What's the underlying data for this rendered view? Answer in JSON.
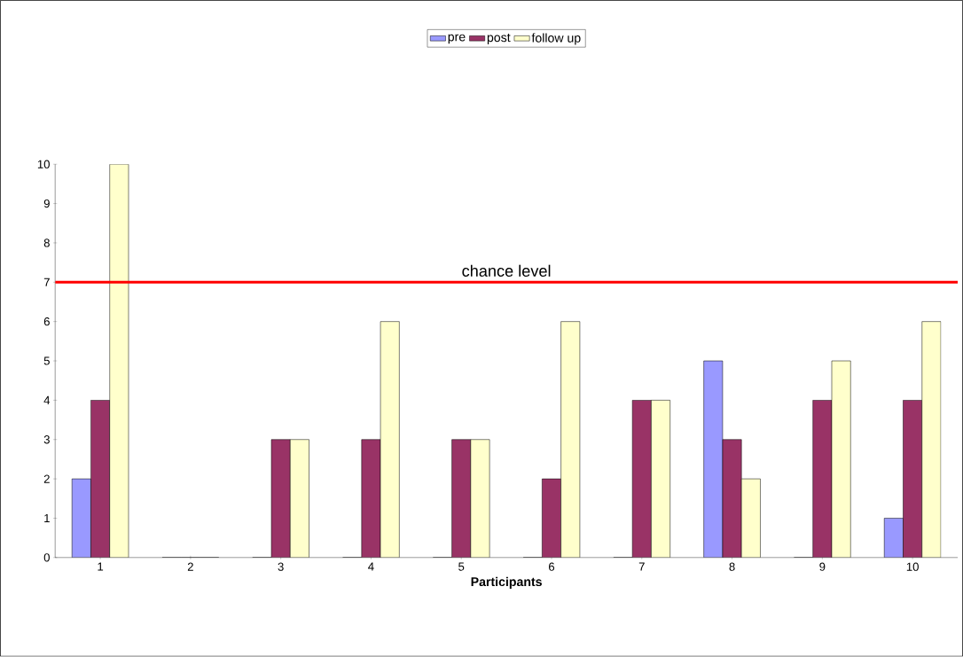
{
  "chart_data": {
    "type": "bar",
    "xlabel": "Participants",
    "categories": [
      "1",
      "2",
      "3",
      "4",
      "5",
      "6",
      "7",
      "8",
      "9",
      "10"
    ],
    "series": [
      {
        "name": "pre",
        "color": "#9999ff",
        "values": [
          2,
          0,
          0,
          0,
          0,
          0,
          0,
          5,
          0,
          1
        ]
      },
      {
        "name": "post",
        "color": "#993366",
        "values": [
          4,
          0,
          3,
          3,
          3,
          2,
          4,
          3,
          4,
          4
        ]
      },
      {
        "name": "follow up",
        "color": "#ffffcc",
        "values": [
          10,
          0,
          3,
          6,
          3,
          6,
          4,
          2,
          5,
          6
        ]
      }
    ],
    "ylim": [
      0,
      10
    ],
    "yticks": [
      0,
      1,
      2,
      3,
      4,
      5,
      6,
      7,
      8,
      9,
      10
    ],
    "ref_lines": [
      {
        "axis": "y",
        "value": 7,
        "label": "chance level",
        "color": "#ff0000",
        "line_style": "solid"
      }
    ],
    "legend": "top",
    "grid": false
  }
}
